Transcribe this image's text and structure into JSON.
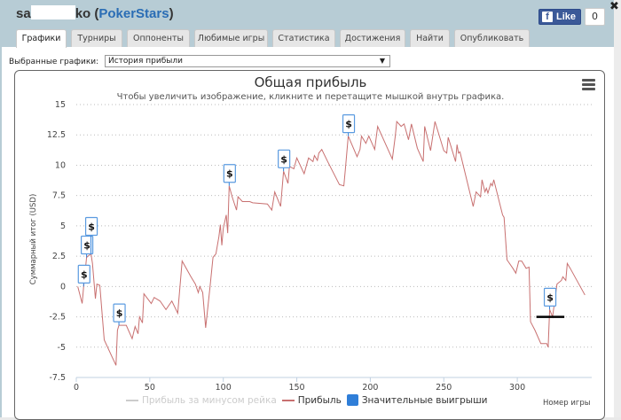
{
  "window": {
    "title_prefix": "sa",
    "title_suffix": "ko (",
    "site": "PokerStars",
    "title_end": ")",
    "close": "✖",
    "fb_like": "Like",
    "fb_count": "0"
  },
  "tabs": [
    {
      "label": "Графики",
      "active": true
    },
    {
      "label": "Турниры"
    },
    {
      "label": "Оппоненты"
    },
    {
      "label": "Любимые игры"
    },
    {
      "label": "Статистика"
    },
    {
      "label": "Достижения"
    },
    {
      "label": "Найти"
    },
    {
      "label": "Опубликовать"
    }
  ],
  "selector": {
    "label": "Выбранные графики:",
    "value": "История прибыли",
    "arrow": "▼"
  },
  "chart_data": {
    "type": "line",
    "title": "Общая прибыль",
    "subtitle": "Чтобы увеличить изображение, кликните и перетащите мышкой внутрь графика.",
    "ylabel": "Суммарный итог (USD)",
    "xlabel": "Номер игры",
    "xlim": [
      0,
      350
    ],
    "ylim": [
      -7.5,
      15
    ],
    "xticks": [
      0,
      50,
      100,
      150,
      200,
      250,
      300
    ],
    "yticks": [
      15,
      12.5,
      10,
      7.5,
      5,
      2.5,
      0,
      -2.5,
      -5,
      -7.5
    ],
    "grid": "horizontal dotted",
    "legend_position": "bottom",
    "series": [
      {
        "name": "Прибыль за минусом рейка",
        "color": "#cccccc",
        "hidden": true,
        "points": []
      },
      {
        "name": "Прибыль",
        "color": "#c87070",
        "points": [
          [
            1,
            0.0
          ],
          [
            4,
            -1.4
          ],
          [
            5,
            0.0
          ],
          [
            7,
            2.4
          ],
          [
            10,
            2.7
          ],
          [
            11,
            1.9
          ],
          [
            13,
            -1.0
          ],
          [
            14,
            0.2
          ],
          [
            16,
            0.1
          ],
          [
            19,
            -4.4
          ],
          [
            27,
            -6.5
          ],
          [
            28,
            -3.6
          ],
          [
            29,
            -3.2
          ],
          [
            34,
            -3.2
          ],
          [
            38,
            -4.3
          ],
          [
            40,
            -3.3
          ],
          [
            42,
            -3.9
          ],
          [
            43,
            -2.5
          ],
          [
            45,
            -3.0
          ],
          [
            46,
            -0.6
          ],
          [
            51,
            -1.4
          ],
          [
            53,
            -0.9
          ],
          [
            57,
            -1.2
          ],
          [
            61,
            -1.9
          ],
          [
            65,
            -1.2
          ],
          [
            69,
            -2.2
          ],
          [
            72,
            2.1
          ],
          [
            78,
            0.8
          ],
          [
            81,
            0.2
          ],
          [
            83,
            -0.5
          ],
          [
            84,
            0.0
          ],
          [
            86,
            -0.5
          ],
          [
            88,
            -3.4
          ],
          [
            91,
            0.0
          ],
          [
            93,
            2.4
          ],
          [
            95,
            2.7
          ],
          [
            97,
            4.1
          ],
          [
            98,
            5.1
          ],
          [
            99,
            3.4
          ],
          [
            100,
            4.8
          ],
          [
            102,
            5.9
          ],
          [
            103,
            4.4
          ],
          [
            104,
            8.3
          ],
          [
            106,
            7.4
          ],
          [
            109,
            6.3
          ],
          [
            110,
            7.4
          ],
          [
            113,
            7.0
          ],
          [
            118,
            7.0
          ],
          [
            120,
            6.9
          ],
          [
            130,
            6.8
          ],
          [
            133,
            6.3
          ],
          [
            135,
            7.8
          ],
          [
            137,
            7.2
          ],
          [
            139,
            6.6
          ],
          [
            141,
            9.5
          ],
          [
            144,
            8.5
          ],
          [
            145,
            9.9
          ],
          [
            148,
            9.7
          ],
          [
            150,
            10.6
          ],
          [
            155,
            9.3
          ],
          [
            158,
            10.6
          ],
          [
            161,
            10.3
          ],
          [
            162,
            10.8
          ],
          [
            164,
            10.4
          ],
          [
            165,
            11.0
          ],
          [
            167,
            11.3
          ],
          [
            171,
            10.3
          ],
          [
            179,
            8.4
          ],
          [
            182,
            8.3
          ],
          [
            183,
            9.6
          ],
          [
            185,
            12.4
          ],
          [
            191,
            10.7
          ],
          [
            193,
            11.3
          ],
          [
            194,
            12.4
          ],
          [
            197,
            11.8
          ],
          [
            199,
            12.4
          ],
          [
            203,
            11.3
          ],
          [
            205,
            13.2
          ],
          [
            215,
            10.5
          ],
          [
            217,
            12.4
          ],
          [
            218,
            13.6
          ],
          [
            221,
            13.2
          ],
          [
            223,
            13.4
          ],
          [
            226,
            12.1
          ],
          [
            228,
            13.4
          ],
          [
            232,
            11.4
          ],
          [
            236,
            10.3
          ],
          [
            237,
            13.2
          ],
          [
            241,
            11.2
          ],
          [
            244,
            13.6
          ],
          [
            250,
            11.2
          ],
          [
            252,
            11.0
          ],
          [
            253,
            12.3
          ],
          [
            258,
            10.3
          ],
          [
            259,
            11.7
          ],
          [
            260,
            11.0
          ],
          [
            261,
            11.1
          ],
          [
            270,
            6.6
          ],
          [
            272,
            7.8
          ],
          [
            275,
            7.4
          ],
          [
            276,
            8.8
          ],
          [
            278,
            7.8
          ],
          [
            279,
            8.1
          ],
          [
            280,
            7.7
          ],
          [
            282,
            8.5
          ],
          [
            283,
            8.3
          ],
          [
            284,
            8.8
          ],
          [
            290,
            5.9
          ],
          [
            291,
            5.7
          ],
          [
            293,
            2.2
          ],
          [
            297,
            1.5
          ],
          [
            299,
            1.1
          ],
          [
            301,
            2.1
          ],
          [
            303,
            2.1
          ],
          [
            306,
            1.5
          ],
          [
            308,
            1.6
          ],
          [
            309,
            -2.9
          ],
          [
            312,
            -3.6
          ],
          [
            316,
            -4.7
          ],
          [
            320,
            -4.7
          ],
          [
            321,
            -5.0
          ],
          [
            322,
            -1.9
          ],
          [
            324,
            -2.5
          ],
          [
            327,
            0.2
          ],
          [
            330,
            0.5
          ],
          [
            331,
            0.8
          ],
          [
            333,
            0.5
          ],
          [
            334,
            1.9
          ],
          [
            336,
            1.5
          ],
          [
            346,
            -0.7
          ]
        ]
      },
      {
        "name": "Значительные выигрыши",
        "color": "#2f7ed8",
        "flag_text": "$",
        "flags": [
          [
            5,
            0.0
          ],
          [
            7,
            2.4
          ],
          [
            10,
            2.7
          ],
          [
            29,
            -3.2
          ],
          [
            104,
            8.3
          ],
          [
            141,
            9.5
          ],
          [
            185,
            12.4
          ],
          [
            322,
            -1.9
          ]
        ]
      }
    ],
    "annotation_line": {
      "x": [
        313,
        332
      ],
      "y": -2.5,
      "color": "#000000"
    }
  }
}
